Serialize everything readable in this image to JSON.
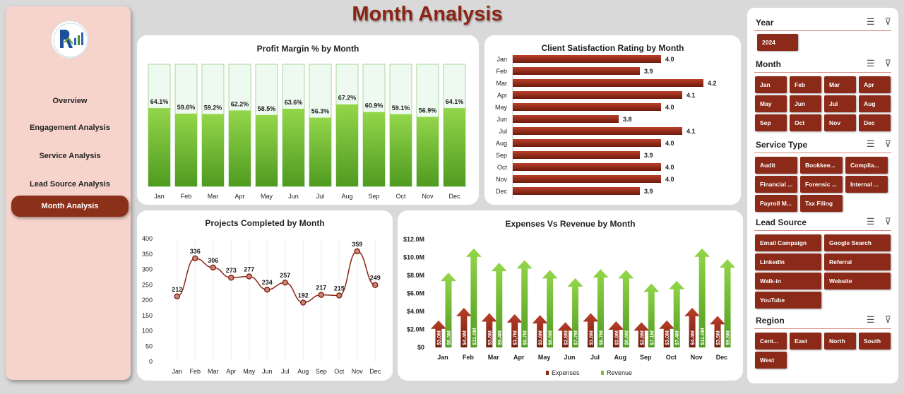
{
  "title": "Month Analysis",
  "sidebar": {
    "items": [
      {
        "label": "Overview",
        "active": false
      },
      {
        "label": "Engagement  Analysis",
        "active": false
      },
      {
        "label": "Service Analysis",
        "active": false
      },
      {
        "label": "Lead Source Analysis",
        "active": false
      },
      {
        "label": "Month Analysis",
        "active": true
      }
    ]
  },
  "colors": {
    "accent": "#8b2a19",
    "green_top": "#93d64a",
    "green_bottom": "#4f9a20",
    "bar_red": "#8b2414"
  },
  "months": [
    "Jan",
    "Feb",
    "Mar",
    "Apr",
    "May",
    "Jun",
    "Jul",
    "Aug",
    "Sep",
    "Oct",
    "Nov",
    "Dec"
  ],
  "chart_data": [
    {
      "type": "bar",
      "title": "Profit Margin % by Month",
      "categories": [
        "Jan",
        "Feb",
        "Mar",
        "Apr",
        "May",
        "Jun",
        "Jul",
        "Aug",
        "Sep",
        "Oct",
        "Nov",
        "Dec"
      ],
      "values": [
        64.1,
        59.6,
        59.2,
        62.2,
        58.5,
        63.6,
        56.3,
        67.2,
        60.9,
        59.1,
        56.9,
        64.1
      ],
      "labels": [
        "64.1%",
        "59.6%",
        "59.2%",
        "62.2%",
        "58.5%",
        "63.6%",
        "56.3%",
        "67.2%",
        "60.9%",
        "59.1%",
        "56.9%",
        "64.1%"
      ],
      "ylim": [
        0,
        100
      ]
    },
    {
      "type": "bar",
      "orientation": "horizontal",
      "title": "Client Satisfaction Rating by Month",
      "categories": [
        "Jan",
        "Feb",
        "Mar",
        "Apr",
        "May",
        "Jun",
        "Jul",
        "Aug",
        "Sep",
        "Oct",
        "Nov",
        "Dec"
      ],
      "values": [
        4.0,
        3.9,
        4.2,
        4.1,
        4.0,
        3.8,
        4.1,
        4.0,
        3.9,
        4.0,
        4.0,
        3.9
      ],
      "labels": [
        "4.0",
        "3.9",
        "4.2",
        "4.1",
        "4.0",
        "3.8",
        "4.1",
        "4.0",
        "3.9",
        "4.0",
        "4.0",
        "3.9"
      ],
      "xlim": [
        3.3,
        4.2
      ]
    },
    {
      "type": "line",
      "title": "Projects Completed by Month",
      "categories": [
        "Jan",
        "Feb",
        "Mar",
        "Apr",
        "May",
        "Jun",
        "Jul",
        "Aug",
        "Sep",
        "Oct",
        "Nov",
        "Dec"
      ],
      "values": [
        212,
        336,
        306,
        273,
        277,
        234,
        257,
        192,
        217,
        215,
        359,
        249
      ],
      "yticks": [
        "0",
        "50",
        "100",
        "150",
        "200",
        "250",
        "300",
        "350",
        "400"
      ],
      "ylim": [
        0,
        400
      ]
    },
    {
      "type": "bar",
      "title": "Expenses Vs Revenue by Month",
      "categories": [
        "Jan",
        "Feb",
        "Mar",
        "Apr",
        "May",
        "Jun",
        "Jul",
        "Aug",
        "Sep",
        "Oct",
        "Nov",
        "Dec"
      ],
      "series": [
        {
          "name": "Expenses",
          "values": [
            3.0,
            4.4,
            3.8,
            3.7,
            3.6,
            2.8,
            3.8,
            2.9,
            2.8,
            3.0,
            4.4,
            3.5
          ],
          "labels": [
            "$3.0M",
            "$4.4M",
            "$3.8M",
            "$3.7M",
            "$3.6M",
            "$2.8M",
            "$3.8M",
            "$2.9M",
            "$2.8M",
            "$3.0M",
            "$4.4M",
            "$3.5M"
          ]
        },
        {
          "name": "Revenue",
          "values": [
            8.3,
            11.0,
            9.4,
            9.7,
            8.6,
            7.7,
            8.7,
            8.6,
            7.1,
            7.4,
            11.0,
            9.8
          ],
          "labels": [
            "$8.3M",
            "$11.0M",
            "$9.4M",
            "$9.7M",
            "$8.6M",
            "$7.7M",
            "$8.7M",
            "$8.6M",
            "$7.1M",
            "$7.4M",
            "$11.0M",
            "$9.8M"
          ]
        }
      ],
      "yticks": [
        "$0",
        "$2.0M",
        "$4.0M",
        "$6.0M",
        "$8.0M",
        "$10.0M",
        "$12.0M"
      ],
      "ylim": [
        0,
        12
      ]
    }
  ],
  "slicers": {
    "year": {
      "title": "Year",
      "items": [
        "2024"
      ]
    },
    "month": {
      "title": "Month",
      "items": [
        "Jan",
        "Feb",
        "Mar",
        "Apr",
        "May",
        "Jun",
        "Jul",
        "Aug",
        "Sep",
        "Oct",
        "Nov",
        "Dec"
      ]
    },
    "service": {
      "title": "Service Type",
      "items": [
        "Audit",
        "Bookkee...",
        "Complia...",
        "Financial ...",
        "Forensic ...",
        "Internal ...",
        "Payroll M...",
        "Tax Filing"
      ]
    },
    "lead": {
      "title": "Lead Source",
      "items": [
        "Email Campaign",
        "Google Search",
        "LinkedIn",
        "Referral",
        "Walk-in",
        "Website",
        "YouTube"
      ]
    },
    "region": {
      "title": "Region",
      "items": [
        "Cent...",
        "East",
        "North",
        "South",
        "West"
      ]
    }
  }
}
